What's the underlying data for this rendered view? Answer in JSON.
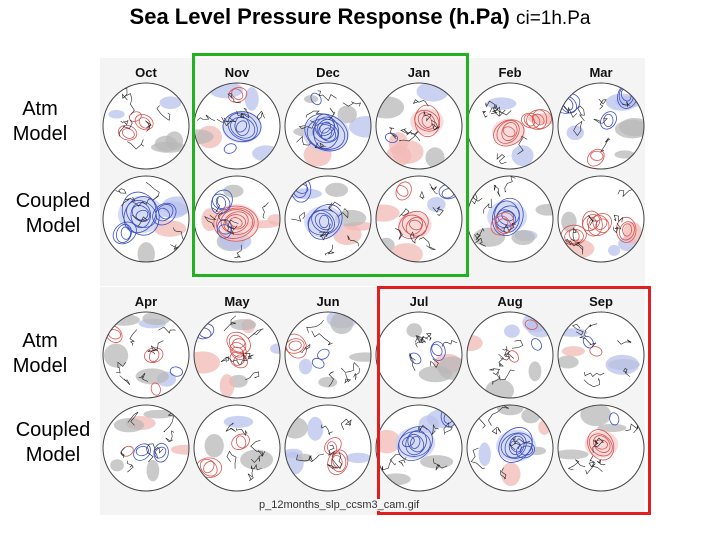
{
  "title": {
    "main": "Sea Level Pressure Response (h.Pa)",
    "ci": "ci=1h.Pa"
  },
  "row_labels": {
    "top_atm": [
      "Atm",
      "Model"
    ],
    "top_coupled": [
      "Coupled",
      "Model"
    ],
    "bottom_atm": [
      "Atm",
      "Model"
    ],
    "bottom_coupled": [
      "Coupled",
      "Model"
    ]
  },
  "months_top": [
    "Oct",
    "Nov",
    "Dec",
    "Jan",
    "Feb",
    "Mar"
  ],
  "months_bottom": [
    "Apr",
    "May",
    "Jun",
    "Jul",
    "Aug",
    "Sep"
  ],
  "filename": "p_12months_slp_ccsm3_cam.gif",
  "colors": {
    "positive": "#d9534f",
    "negative": "#3b4fc4",
    "highlight_green": "#22b21f",
    "highlight_red": "#e02020",
    "stipple": "#b8b8b8"
  }
}
